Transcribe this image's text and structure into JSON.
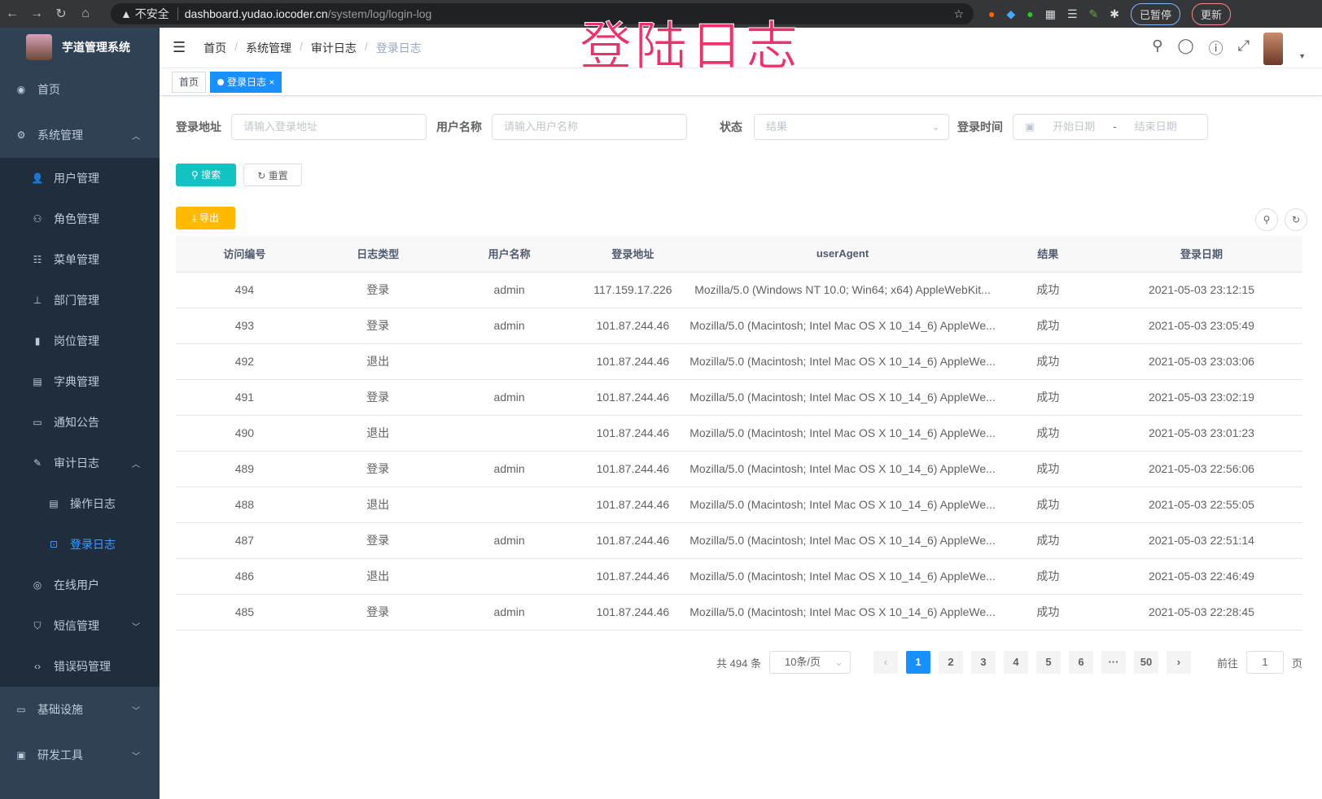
{
  "browser": {
    "insecure": "不安全",
    "host": "dashboard.yudao.iocoder.cn",
    "path": "/system/log/login-log",
    "paused": "已暂停",
    "update": "更新"
  },
  "overlay_title": "登陆日志",
  "sidebar": {
    "title": "芋道管理系统",
    "items": [
      {
        "label": "首页",
        "icon": "dashboard-icon",
        "level": 0
      },
      {
        "label": "系统管理",
        "icon": "gear-icon",
        "level": 0,
        "arrow": "up"
      },
      {
        "label": "用户管理",
        "icon": "user-icon",
        "level": 1
      },
      {
        "label": "角色管理",
        "icon": "peoples-icon",
        "level": 1
      },
      {
        "label": "菜单管理",
        "icon": "tree-table-icon",
        "level": 1
      },
      {
        "label": "部门管理",
        "icon": "tree-icon",
        "level": 1
      },
      {
        "label": "岗位管理",
        "icon": "post-icon",
        "level": 1
      },
      {
        "label": "字典管理",
        "icon": "dict-icon",
        "level": 1
      },
      {
        "label": "通知公告",
        "icon": "message-icon",
        "level": 1
      },
      {
        "label": "审计日志",
        "icon": "log-icon",
        "level": 1,
        "arrow": "up"
      },
      {
        "label": "操作日志",
        "icon": "form-icon",
        "level": 2
      },
      {
        "label": "登录日志",
        "icon": "logininfor-icon",
        "level": 2,
        "active": true
      },
      {
        "label": "在线用户",
        "icon": "online-icon",
        "level": 1
      },
      {
        "label": "短信管理",
        "icon": "validCode-icon",
        "level": 1,
        "arrow": "down"
      },
      {
        "label": "错误码管理",
        "icon": "code-icon",
        "level": 1
      },
      {
        "label": "基础设施",
        "icon": "monitor-icon",
        "level": 0,
        "arrow": "down"
      },
      {
        "label": "研发工具",
        "icon": "tool-icon",
        "level": 0,
        "arrow": "down"
      }
    ]
  },
  "breadcrumb": [
    "首页",
    "系统管理",
    "审计日志",
    "登录日志"
  ],
  "tags": [
    {
      "label": "首页"
    },
    {
      "label": "登录日志",
      "active": true
    }
  ],
  "form": {
    "addr_label": "登录地址",
    "addr_ph": "请输入登录地址",
    "user_label": "用户名称",
    "user_ph": "请输入用户名称",
    "status_label": "状态",
    "status_ph": "结果",
    "time_label": "登录时间",
    "start_ph": "开始日期",
    "sep": "-",
    "end_ph": "结束日期"
  },
  "buttons": {
    "search": "搜索",
    "reset": "重置",
    "export": "导出"
  },
  "table": {
    "columns": [
      "访问编号",
      "日志类型",
      "用户名称",
      "登录地址",
      "userAgent",
      "结果",
      "登录日期"
    ],
    "rows": [
      [
        "494",
        "登录",
        "admin",
        "117.159.17.226",
        "Mozilla/5.0 (Windows NT 10.0; Win64; x64) AppleWebKit...",
        "成功",
        "2021-05-03 23:12:15"
      ],
      [
        "493",
        "登录",
        "admin",
        "101.87.244.46",
        "Mozilla/5.0 (Macintosh; Intel Mac OS X 10_14_6) AppleWe...",
        "成功",
        "2021-05-03 23:05:49"
      ],
      [
        "492",
        "退出",
        "",
        "101.87.244.46",
        "Mozilla/5.0 (Macintosh; Intel Mac OS X 10_14_6) AppleWe...",
        "成功",
        "2021-05-03 23:03:06"
      ],
      [
        "491",
        "登录",
        "admin",
        "101.87.244.46",
        "Mozilla/5.0 (Macintosh; Intel Mac OS X 10_14_6) AppleWe...",
        "成功",
        "2021-05-03 23:02:19"
      ],
      [
        "490",
        "退出",
        "",
        "101.87.244.46",
        "Mozilla/5.0 (Macintosh; Intel Mac OS X 10_14_6) AppleWe...",
        "成功",
        "2021-05-03 23:01:23"
      ],
      [
        "489",
        "登录",
        "admin",
        "101.87.244.46",
        "Mozilla/5.0 (Macintosh; Intel Mac OS X 10_14_6) AppleWe...",
        "成功",
        "2021-05-03 22:56:06"
      ],
      [
        "488",
        "退出",
        "",
        "101.87.244.46",
        "Mozilla/5.0 (Macintosh; Intel Mac OS X 10_14_6) AppleWe...",
        "成功",
        "2021-05-03 22:55:05"
      ],
      [
        "487",
        "登录",
        "admin",
        "101.87.244.46",
        "Mozilla/5.0 (Macintosh; Intel Mac OS X 10_14_6) AppleWe...",
        "成功",
        "2021-05-03 22:51:14"
      ],
      [
        "486",
        "退出",
        "",
        "101.87.244.46",
        "Mozilla/5.0 (Macintosh; Intel Mac OS X 10_14_6) AppleWe...",
        "成功",
        "2021-05-03 22:46:49"
      ],
      [
        "485",
        "登录",
        "admin",
        "101.87.244.46",
        "Mozilla/5.0 (Macintosh; Intel Mac OS X 10_14_6) AppleWe...",
        "成功",
        "2021-05-03 22:28:45"
      ]
    ]
  },
  "pagination": {
    "total": "共 494 条",
    "size": "10条/页",
    "pages": [
      "1",
      "2",
      "3",
      "4",
      "5",
      "6",
      "···",
      "50"
    ],
    "current": "1",
    "goto": "前往",
    "goto_value": "1",
    "page_unit": "页"
  },
  "colors": {
    "sidebar": "#304156",
    "primary": "#1890ff",
    "search": "#13c2c2",
    "export": "#ffba00"
  }
}
